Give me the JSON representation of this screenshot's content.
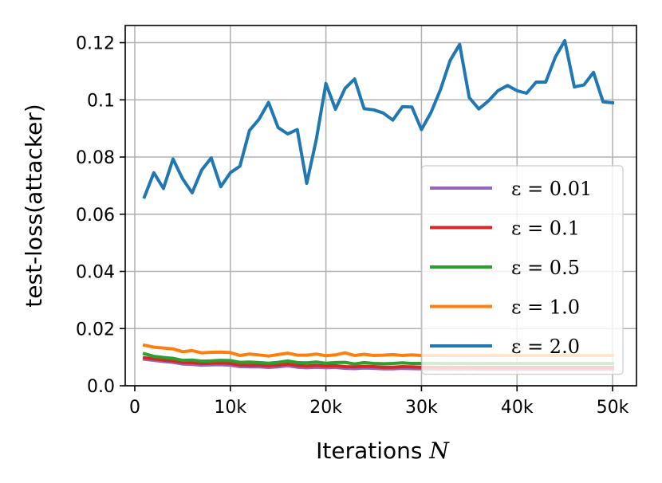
{
  "chart_data": {
    "type": "line",
    "title": "",
    "xlabel": "Iterations ",
    "xlabel_symbol": "N",
    "ylabel": "test-loss(attacker)",
    "xlim": [
      -1000,
      52500
    ],
    "ylim": [
      0,
      0.126
    ],
    "grid": true,
    "legend_position": "lower-right",
    "xticks": [
      0,
      10000,
      20000,
      30000,
      40000,
      50000
    ],
    "xtick_labels": [
      "0",
      "10k",
      "20k",
      "30k",
      "40k",
      "50k"
    ],
    "yticks": [
      0,
      0.02,
      0.04,
      0.06,
      0.08,
      0.1,
      0.12
    ],
    "ytick_labels": [
      "0.0",
      "0.02",
      "0.04",
      "0.06",
      "0.08",
      "0.1",
      "0.12"
    ],
    "x": [
      1000,
      2000,
      3000,
      4000,
      5000,
      6000,
      7000,
      8000,
      9000,
      10000,
      11000,
      12000,
      13000,
      14000,
      15000,
      16000,
      17000,
      18000,
      19000,
      20000,
      21000,
      22000,
      23000,
      24000,
      25000,
      26000,
      27000,
      28000,
      29000,
      30000,
      31000,
      32000,
      33000,
      34000,
      35000,
      36000,
      37000,
      38000,
      39000,
      40000,
      41000,
      42000,
      43000,
      44000,
      45000,
      46000,
      47000,
      48000,
      49000,
      50000
    ],
    "series": [
      {
        "name": "ε = 0.01",
        "color": "#9467bd",
        "values": [
          0.0093,
          0.0089,
          0.0085,
          0.0082,
          0.0076,
          0.0075,
          0.0072,
          0.0073,
          0.0074,
          0.0072,
          0.0067,
          0.0066,
          0.0066,
          0.0064,
          0.0066,
          0.007,
          0.0065,
          0.0063,
          0.0065,
          0.0063,
          0.0064,
          0.0061,
          0.006,
          0.0062,
          0.0061,
          0.0059,
          0.0059,
          0.0061,
          0.006,
          0.0059,
          0.0059,
          0.0058,
          0.0059,
          0.0058,
          0.0059,
          0.0058,
          0.0058,
          0.0058,
          0.0058,
          0.0058,
          0.0058,
          0.0058,
          0.0058,
          0.0058,
          0.0058,
          0.0058,
          0.0058,
          0.0058,
          0.0058,
          0.0058
        ]
      },
      {
        "name": "ε = 0.1",
        "color": "#d62728",
        "values": [
          0.0098,
          0.0094,
          0.009,
          0.0087,
          0.0082,
          0.0081,
          0.0078,
          0.0079,
          0.008,
          0.0078,
          0.0073,
          0.0072,
          0.0072,
          0.007,
          0.0072,
          0.0076,
          0.0071,
          0.0069,
          0.0071,
          0.0069,
          0.007,
          0.0067,
          0.0066,
          0.0068,
          0.0067,
          0.0065,
          0.0065,
          0.0067,
          0.0066,
          0.0065,
          0.0065,
          0.0064,
          0.0065,
          0.0064,
          0.0065,
          0.0064,
          0.0064,
          0.0064,
          0.0064,
          0.0064,
          0.0064,
          0.0064,
          0.0064,
          0.0064,
          0.0064,
          0.0064,
          0.0064,
          0.0064,
          0.0064,
          0.0064
        ]
      },
      {
        "name": "ε = 0.5",
        "color": "#2ca02c",
        "values": [
          0.0112,
          0.0103,
          0.0099,
          0.0096,
          0.0089,
          0.009,
          0.0086,
          0.0087,
          0.0089,
          0.0088,
          0.0082,
          0.0083,
          0.0081,
          0.0079,
          0.0082,
          0.0087,
          0.0081,
          0.008,
          0.0083,
          0.0079,
          0.0081,
          0.0082,
          0.0076,
          0.0081,
          0.0078,
          0.0077,
          0.0078,
          0.008,
          0.0078,
          0.0078,
          0.0079,
          0.0078,
          0.0078,
          0.0078,
          0.0078,
          0.0078,
          0.0078,
          0.0078,
          0.0078,
          0.0078,
          0.0078,
          0.0078,
          0.0078,
          0.0078,
          0.0078,
          0.0078,
          0.0078,
          0.0078,
          0.0078,
          0.0078
        ]
      },
      {
        "name": "ε = 1.0",
        "color": "#ff7f0e",
        "values": [
          0.0142,
          0.0135,
          0.0132,
          0.0129,
          0.0119,
          0.0123,
          0.0115,
          0.0117,
          0.0118,
          0.0116,
          0.0106,
          0.0111,
          0.0108,
          0.0104,
          0.0109,
          0.0114,
          0.0107,
          0.0107,
          0.0111,
          0.0105,
          0.0108,
          0.0115,
          0.0106,
          0.011,
          0.0106,
          0.0107,
          0.0109,
          0.0106,
          0.0108,
          0.0106,
          0.0106,
          0.0106,
          0.0106,
          0.0106,
          0.0106,
          0.0106,
          0.0106,
          0.0106,
          0.0106,
          0.0106,
          0.0106,
          0.0106,
          0.0106,
          0.0106,
          0.0106,
          0.0106,
          0.0106,
          0.0106,
          0.0106,
          0.0106
        ]
      },
      {
        "name": "ε = 2.0",
        "color": "#1f77b4",
        "values": [
          0.066,
          0.0745,
          0.069,
          0.0793,
          0.0724,
          0.0675,
          0.0755,
          0.0797,
          0.0696,
          0.0745,
          0.0768,
          0.0893,
          0.0932,
          0.0991,
          0.0903,
          0.0881,
          0.0896,
          0.0708,
          0.0862,
          0.1057,
          0.0967,
          0.104,
          0.1073,
          0.0969,
          0.0965,
          0.0954,
          0.0929,
          0.0976,
          0.0975,
          0.0896,
          0.0956,
          0.1037,
          0.1138,
          0.1194,
          0.1008,
          0.0968,
          0.0996,
          0.1032,
          0.105,
          0.1032,
          0.1023,
          0.1062,
          0.1062,
          0.1149,
          0.1207,
          0.1045,
          0.1052,
          0.1096,
          0.0993,
          0.099
        ]
      }
    ]
  }
}
